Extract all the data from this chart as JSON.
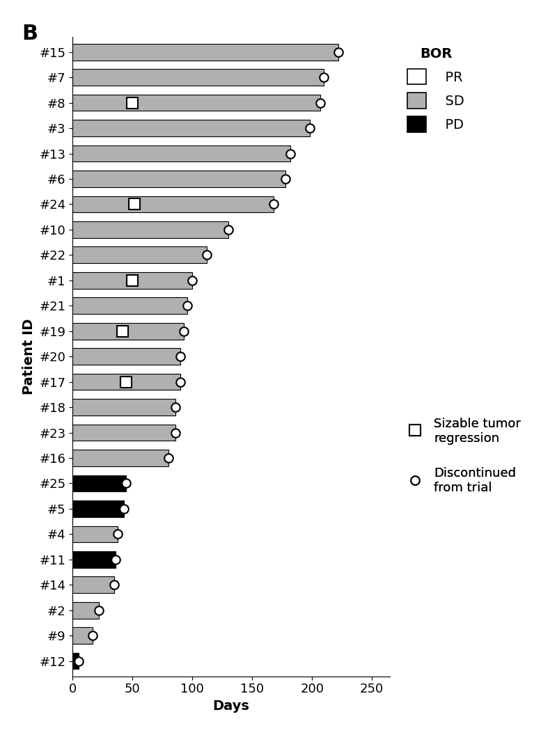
{
  "patients": [
    "#15",
    "#7",
    "#8",
    "#3",
    "#13",
    "#6",
    "#24",
    "#10",
    "#22",
    "#1",
    "#21",
    "#19",
    "#20",
    "#17",
    "#18",
    "#23",
    "#16",
    "#25",
    "#5",
    "#4",
    "#11",
    "#14",
    "#2",
    "#9",
    "#12"
  ],
  "bar_lengths": [
    222,
    210,
    207,
    198,
    182,
    178,
    168,
    130,
    112,
    100,
    96,
    93,
    90,
    90,
    86,
    86,
    80,
    45,
    43,
    38,
    36,
    35,
    22,
    17,
    5
  ],
  "bar_colors": [
    "#b0b0b0",
    "#b0b0b0",
    "#b0b0b0",
    "#b0b0b0",
    "#b0b0b0",
    "#b0b0b0",
    "#b0b0b0",
    "#b0b0b0",
    "#b0b0b0",
    "#b0b0b0",
    "#b0b0b0",
    "#b0b0b0",
    "#b0b0b0",
    "#b0b0b0",
    "#b0b0b0",
    "#b0b0b0",
    "#b0b0b0",
    "#000000",
    "#000000",
    "#b0b0b0",
    "#000000",
    "#b0b0b0",
    "#b0b0b0",
    "#b0b0b0",
    "#000000"
  ],
  "discontinued_x": [
    222,
    210,
    207,
    198,
    182,
    178,
    168,
    130,
    112,
    100,
    96,
    93,
    90,
    90,
    86,
    86,
    80,
    45,
    43,
    38,
    36,
    35,
    22,
    17,
    5
  ],
  "square_patients": [
    "#8",
    "#24",
    "#1",
    "#19",
    "#17"
  ],
  "square_x": [
    50,
    52,
    50,
    42,
    45
  ],
  "xlim": [
    0,
    265
  ],
  "xticks": [
    0,
    50,
    100,
    150,
    200,
    250
  ],
  "xlabel": "Days",
  "ylabel": "Patient ID",
  "panel_label": "B",
  "legend_bor_title": "BOR",
  "legend_bor_items": [
    {
      "label": "PR",
      "color": "#ffffff",
      "edgecolor": "#000000"
    },
    {
      "label": "SD",
      "color": "#b0b0b0",
      "edgecolor": "#000000"
    },
    {
      "label": "PD",
      "color": "#000000",
      "edgecolor": "#000000"
    }
  ],
  "annotation_square_label": "Sizable tumor\nregression",
  "annotation_circle_label": "Discontinued\nfrom trial",
  "bar_height": 0.65,
  "square_size": 11,
  "circle_size": 9,
  "fontsize_ticks": 13,
  "fontsize_labels": 14,
  "fontsize_legend": 13,
  "fontsize_panel": 22
}
